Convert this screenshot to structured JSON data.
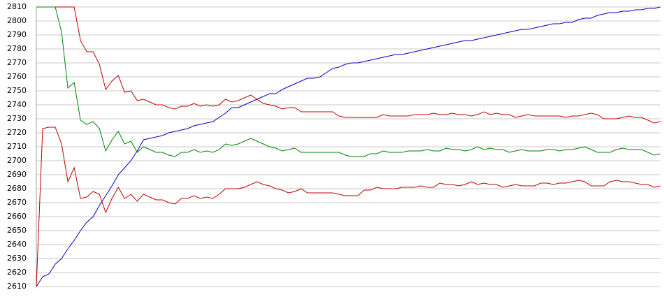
{
  "chart_data": {
    "type": "line",
    "ylim": [
      2610,
      2810
    ],
    "yticks": [
      2610,
      2620,
      2630,
      2640,
      2650,
      2660,
      2670,
      2680,
      2690,
      2700,
      2710,
      2720,
      2730,
      2740,
      2750,
      2760,
      2770,
      2780,
      2790,
      2800,
      2810
    ],
    "grid": true,
    "series": [
      {
        "color": "#0000c0",
        "values": [
          2610,
          2617,
          2619,
          2626,
          2630,
          2637,
          2643,
          2650,
          2656,
          2660,
          2668,
          2675,
          2682,
          2690,
          2695,
          2700,
          2707,
          2715,
          2716,
          2717,
          2718,
          2720,
          2721,
          2722,
          2723,
          2725,
          2726,
          2727,
          2728,
          2731,
          2734,
          2738,
          2738,
          2740,
          2742,
          2744,
          2746,
          2748,
          2748,
          2751,
          2753,
          2755,
          2757,
          2759,
          2759,
          2760,
          2763,
          2766,
          2767,
          2769,
          2770,
          2770,
          2771,
          2772,
          2773,
          2774,
          2775,
          2776,
          2776,
          2777,
          2778,
          2779,
          2780,
          2781,
          2782,
          2783,
          2784,
          2785,
          2786,
          2786,
          2787,
          2788,
          2789,
          2790,
          2791,
          2792,
          2793,
          2794,
          2794,
          2795,
          2796,
          2797,
          2798,
          2798,
          2799,
          2799,
          2801,
          2802,
          2802,
          2804,
          2805,
          2806,
          2806,
          2807,
          2807,
          2808,
          2808,
          2809,
          2809,
          2810
        ]
      },
      {
        "color": "#c00000",
        "values": [
          2810,
          2810,
          2810,
          2810,
          2810,
          2810,
          2810,
          2786,
          2778,
          2778,
          2769,
          2751,
          2757,
          2761,
          2749,
          2750,
          2743,
          2744,
          2742,
          2740,
          2740,
          2738,
          2737,
          2739,
          2739,
          2741,
          2739,
          2740,
          2739,
          2740,
          2744,
          2742,
          2743,
          2745,
          2747,
          2744,
          2741,
          2740,
          2739,
          2737,
          2738,
          2738,
          2735,
          2735,
          2735,
          2735,
          2735,
          2735,
          2732,
          2731,
          2731,
          2731,
          2731,
          2731,
          2731,
          2733,
          2732,
          2732,
          2732,
          2732,
          2733,
          2733,
          2733,
          2734,
          2733,
          2733,
          2734,
          2733,
          2733,
          2732,
          2733,
          2735,
          2733,
          2734,
          2733,
          2733,
          2731,
          2732,
          2733,
          2732,
          2732,
          2732,
          2732,
          2732,
          2731,
          2732,
          2732,
          2733,
          2734,
          2733,
          2730,
          2730,
          2730,
          2731,
          2732,
          2731,
          2731,
          2729,
          2727,
          2728
        ]
      },
      {
        "color": "#008000",
        "values": [
          2810,
          2810,
          2810,
          2810,
          2792,
          2752,
          2756,
          2729,
          2726,
          2728,
          2723,
          2707,
          2715,
          2721,
          2712,
          2714,
          2706,
          2710,
          2708,
          2706,
          2706,
          2704,
          2703,
          2706,
          2706,
          2708,
          2706,
          2707,
          2706,
          2708,
          2712,
          2711,
          2712,
          2714,
          2716,
          2714,
          2712,
          2710,
          2709,
          2707,
          2708,
          2709,
          2706,
          2706,
          2706,
          2706,
          2706,
          2706,
          2706,
          2704,
          2703,
          2703,
          2703,
          2705,
          2705,
          2707,
          2706,
          2706,
          2706,
          2707,
          2707,
          2707,
          2708,
          2707,
          2707,
          2709,
          2708,
          2708,
          2707,
          2708,
          2710,
          2708,
          2709,
          2708,
          2708,
          2706,
          2707,
          2708,
          2707,
          2707,
          2707,
          2708,
          2708,
          2707,
          2708,
          2708,
          2709,
          2710,
          2708,
          2706,
          2706,
          2706,
          2708,
          2709,
          2708,
          2708,
          2708,
          2706,
          2704,
          2705
        ]
      },
      {
        "color": "#c00000",
        "values": [
          2610,
          2723,
          2724,
          2724,
          2712,
          2685,
          2695,
          2673,
          2674,
          2678,
          2676,
          2663,
          2673,
          2681,
          2673,
          2676,
          2671,
          2676,
          2674,
          2672,
          2672,
          2670,
          2669,
          2673,
          2673,
          2675,
          2673,
          2674,
          2673,
          2676,
          2680,
          2680,
          2680,
          2681,
          2683,
          2685,
          2683,
          2682,
          2680,
          2679,
          2677,
          2678,
          2680,
          2677,
          2677,
          2677,
          2677,
          2677,
          2676,
          2675,
          2675,
          2675,
          2679,
          2679,
          2681,
          2680,
          2680,
          2680,
          2681,
          2681,
          2681,
          2682,
          2681,
          2681,
          2684,
          2683,
          2683,
          2682,
          2683,
          2685,
          2683,
          2684,
          2683,
          2683,
          2681,
          2682,
          2683,
          2682,
          2682,
          2682,
          2684,
          2684,
          2683,
          2684,
          2684,
          2685,
          2686,
          2685,
          2682,
          2682,
          2682,
          2685,
          2686,
          2685,
          2685,
          2684,
          2683,
          2683,
          2681,
          2682
        ]
      }
    ]
  }
}
